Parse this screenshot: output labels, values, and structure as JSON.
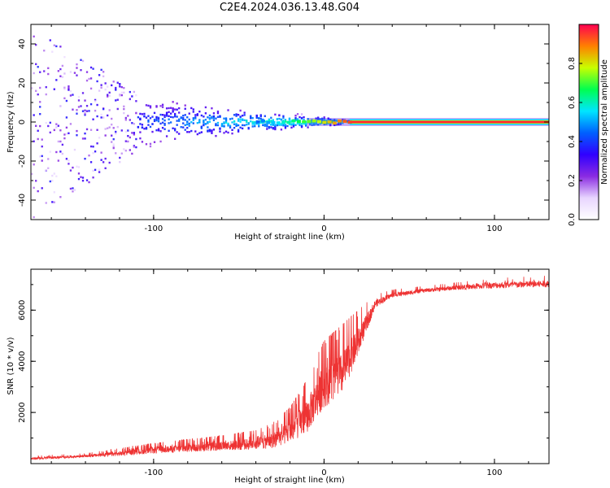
{
  "page": {
    "title": "C2E4.2024.036.13.48.G04"
  },
  "colors": {
    "snr_line": "#ee3333",
    "axis": "#000000",
    "background": "#ffffff"
  },
  "chart_data": [
    {
      "type": "heatmap",
      "title": "C2E4.2024.036.13.48.G04",
      "xlabel": "Height of straight line (km)",
      "ylabel": "Frequency (Hz)",
      "xlim": [
        -172,
        132
      ],
      "ylim": [
        -50,
        50
      ],
      "x_ticks": [
        -100,
        0,
        100
      ],
      "y_ticks": [
        -40,
        -20,
        0,
        20,
        40
      ],
      "colorbar": {
        "label": "Normalized spectral amplitude",
        "range": [
          0,
          1
        ],
        "ticks": [
          "0.0",
          "0.2",
          "0.4",
          "0.6",
          "0.8"
        ],
        "tick_values": [
          0.0,
          0.2,
          0.4,
          0.6,
          0.8
        ],
        "colormap": [
          "#ffffff",
          "#e8d5ff",
          "#8a2be2",
          "#3000ff",
          "#0060ff",
          "#00e5ff",
          "#00ff50",
          "#c8ff00",
          "#ff8000",
          "#ff0050"
        ]
      },
      "description_points": {
        "tone_frequency_hz": 0,
        "scatter_band_halfwidth_hz": [
          [
            -172,
            50
          ],
          [
            -110,
            15
          ],
          [
            -40,
            6
          ],
          [
            0,
            3
          ],
          [
            15,
            1
          ],
          [
            132,
            1
          ]
        ]
      }
    },
    {
      "type": "line",
      "title": "",
      "xlabel": "Height of straight line (km)",
      "ylabel": "SNR (10 * v/v)",
      "xlim": [
        -172,
        132
      ],
      "ylim": [
        0,
        7600
      ],
      "x_ticks": [
        -100,
        0,
        100
      ],
      "y_ticks": [
        2000,
        4000,
        6000
      ],
      "series": [
        {
          "name": "SNR",
          "color": "#ee3333",
          "envelope": [
            [
              -172,
              150,
              300
            ],
            [
              -140,
              250,
              400
            ],
            [
              -120,
              300,
              600
            ],
            [
              -100,
              400,
              800
            ],
            [
              -80,
              450,
              950
            ],
            [
              -60,
              500,
              1100
            ],
            [
              -40,
              550,
              1300
            ],
            [
              -30,
              600,
              1600
            ],
            [
              -20,
              800,
              2200
            ],
            [
              -10,
              1200,
              3300
            ],
            [
              -5,
              1700,
              4200
            ],
            [
              0,
              2200,
              4800
            ],
            [
              10,
              2600,
              5400
            ],
            [
              20,
              4200,
              6000
            ],
            [
              30,
              6100,
              6600
            ],
            [
              40,
              6500,
              6800
            ],
            [
              60,
              6700,
              6950
            ],
            [
              80,
              6800,
              7100
            ],
            [
              100,
              6850,
              7250
            ],
            [
              132,
              6900,
              7350
            ]
          ]
        }
      ]
    }
  ]
}
